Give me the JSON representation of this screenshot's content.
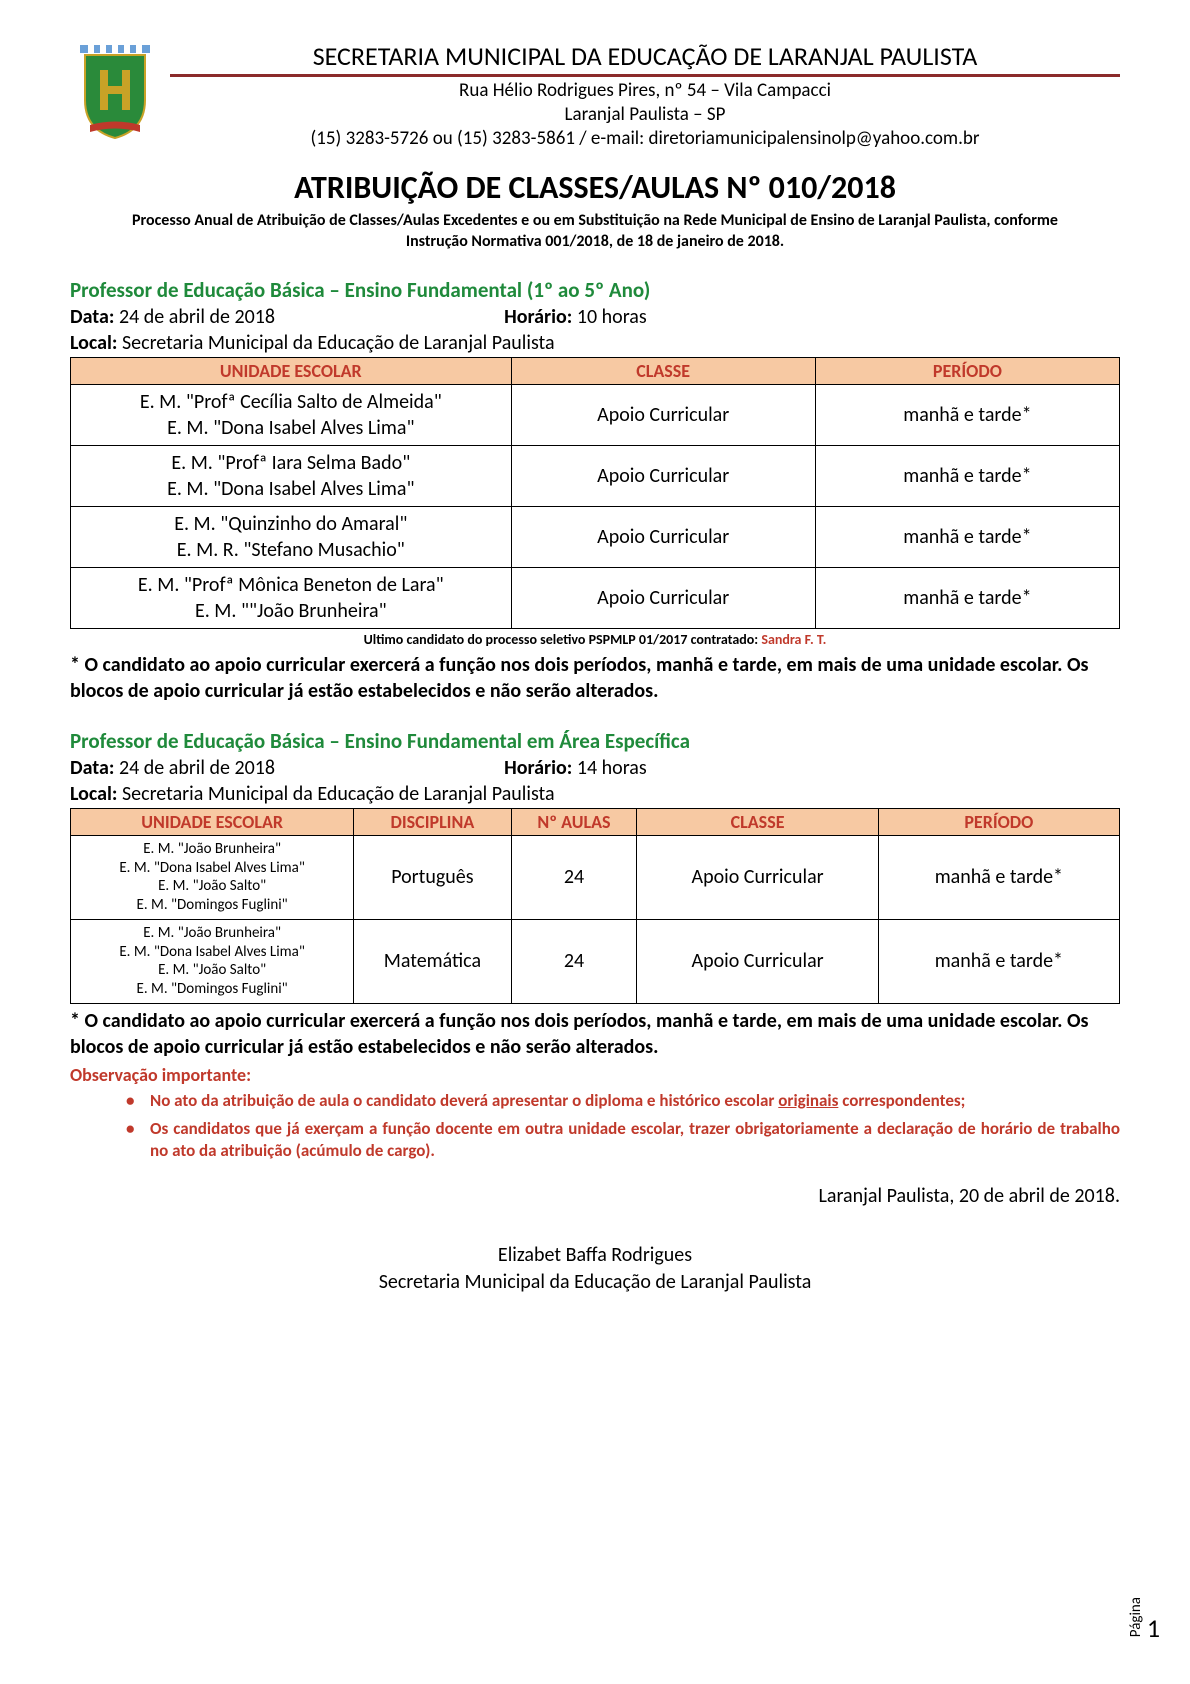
{
  "header": {
    "org_title": "SECRETARIA MUNICIPAL DA EDUCAÇÃO DE LARANJAL PAULISTA",
    "address1": "Rua Hélio Rodrigues Pires, nº 54 – Vila Campacci",
    "address2": "Laranjal Paulista – SP",
    "contact": "(15) 3283-5726 ou (15) 3283-5861 / e-mail: diretoriamunicipalensinolp@yahoo.com.br"
  },
  "doc": {
    "title": "ATRIBUIÇÃO DE CLASSES/AULAS Nº 010/2018",
    "subtitle": "Processo Anual de Atribuição de Classes/Aulas Excedentes e ou em Substituição na Rede Municipal de Ensino de Laranjal Paulista, conforme Instrução Normativa 001/2018, de 18 de janeiro de 2018."
  },
  "section1": {
    "title": "Professor de Educação Básica – Ensino Fundamental (1º ao 5º Ano)",
    "data_label": "Data:",
    "data_value": "24 de abril de 2018",
    "horario_label": "Horário:",
    "horario_value": "10 horas",
    "local_label": "Local:",
    "local_value": "Secretaria Municipal da Educação de Laranjal Paulista",
    "headers": {
      "c1": "UNIDADE ESCOLAR",
      "c2": "CLASSE",
      "c3": "PERÍODO"
    },
    "rows": [
      {
        "schools": [
          "E. M. \"Profª Cecília Salto de Almeida\"",
          "E. M. \"Dona Isabel Alves Lima\""
        ],
        "classe": "Apoio Curricular",
        "periodo": "manhã e tarde*"
      },
      {
        "schools": [
          "E. M. \"Profª Iara Selma Bado\"",
          "E. M. \"Dona Isabel Alves Lima\""
        ],
        "classe": "Apoio Curricular",
        "periodo": "manhã e tarde*"
      },
      {
        "schools": [
          "E. M. \"Quinzinho do Amaral\"",
          "E. M. R. \"Stefano Musachio\""
        ],
        "classe": "Apoio Curricular",
        "periodo": "manhã e tarde*"
      },
      {
        "schools": [
          "E. M. \"Profª Mônica Beneton de Lara\"",
          "E. M. \"\"João Brunheira\""
        ],
        "classe": "Apoio Curricular",
        "periodo": "manhã e tarde*"
      }
    ],
    "foot_prefix": "Ultimo candidato do processo seletivo PSPMLP 01/2017 contratado: ",
    "foot_name": "Sandra F. T.",
    "note": "* O candidato ao apoio curricular exercerá a função nos dois períodos, manhã e tarde, em mais de uma unidade escolar. Os blocos de apoio curricular já estão estabelecidos e não serão alterados."
  },
  "section2": {
    "title": "Professor de Educação Básica – Ensino Fundamental em Área Específica",
    "data_label": "Data:",
    "data_value": "24 de abril de 2018",
    "horario_label": "Horário:",
    "horario_value": "14 horas",
    "local_label": "Local:",
    "local_value": "Secretaria Municipal da Educação de Laranjal Paulista",
    "headers": {
      "c1": "UNIDADE ESCOLAR",
      "c2": "DISCIPLINA",
      "c3": "Nº AULAS",
      "c4": "CLASSE",
      "c5": "PERÍODO"
    },
    "rows": [
      {
        "schools": [
          "E. M. \"João Brunheira\"",
          "E. M. \"Dona Isabel Alves Lima\"",
          "E. M. \"João Salto\"",
          "E. M. \"Domingos Fuglini\""
        ],
        "disciplina": "Português",
        "naulas": "24",
        "classe": "Apoio Curricular",
        "periodo": "manhã e tarde*"
      },
      {
        "schools": [
          "E. M. \"João Brunheira\"",
          "E. M. \"Dona Isabel Alves Lima\"",
          "E. M. \"João Salto\"",
          "E. M. \"Domingos Fuglini\""
        ],
        "disciplina": "Matemática",
        "naulas": "24",
        "classe": "Apoio Curricular",
        "periodo": "manhã e tarde*"
      }
    ],
    "note": "* O candidato ao apoio curricular exercerá a função nos dois períodos, manhã e tarde, em mais de uma unidade escolar. Os blocos de apoio curricular já estão estabelecidos e não serão alterados."
  },
  "obs": {
    "title": "Observação importante:",
    "item1_a": "No ato da atribuição de aula o candidato deverá apresentar o diploma e histórico escolar ",
    "item1_u": "originais",
    "item1_b": " correspondentes;",
    "item2": "Os candidatos que já exerçam a função docente em outra unidade escolar, trazer obrigatoriamente a declaração de horário de trabalho no ato da atribuição (acúmulo de cargo)."
  },
  "footer": {
    "place_date": "Laranjal Paulista, 20 de abril de 2018.",
    "sig_name": "Elizabet Baffa Rodrigues",
    "sig_org": "Secretaria Municipal da Educação de Laranjal Paulista"
  },
  "page": {
    "label": "Página",
    "num": "1"
  },
  "colors": {
    "accent_green": "#1f8a3b",
    "accent_red": "#c0392b",
    "table_header_bg": "#f7c9a3",
    "rule": "#8b2a2a"
  }
}
